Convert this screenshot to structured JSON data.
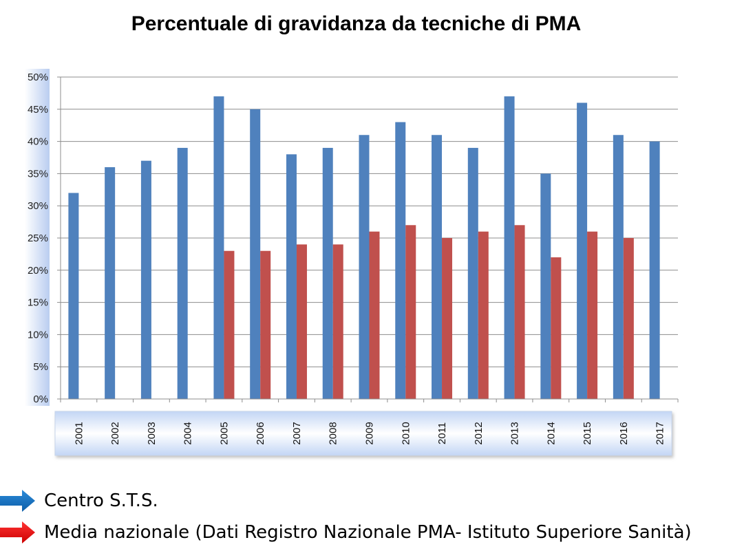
{
  "chart_data": {
    "type": "bar",
    "title": "Percentuale di gravidanza da tecniche di PMA",
    "categories": [
      "2001",
      "2002",
      "2003",
      "2004",
      "2005",
      "2006",
      "2007",
      "2008",
      "2009",
      "2010",
      "2011",
      "2012",
      "2013",
      "2014",
      "2015",
      "2016",
      "2017"
    ],
    "series": [
      {
        "name": "Centro S.T.S.",
        "color": "#4F81BD",
        "values": [
          32,
          36,
          37,
          39,
          47,
          45,
          38,
          39,
          41,
          43,
          41,
          39,
          47,
          35,
          46,
          41,
          40
        ]
      },
      {
        "name": "Media nazionale (Dati Registro Nazionale PMA- Istituto Superiore Sanità)",
        "color": "#C0504D",
        "values": [
          null,
          null,
          null,
          null,
          23,
          23,
          24,
          24,
          26,
          27,
          25,
          26,
          27,
          22,
          26,
          25,
          null
        ]
      }
    ],
    "ylim": [
      0,
      50
    ],
    "yticks": [
      0,
      5,
      10,
      15,
      20,
      25,
      30,
      35,
      40,
      45,
      50
    ],
    "ytick_labels": [
      "0%",
      "5%",
      "10%",
      "15%",
      "20%",
      "25%",
      "30%",
      "35%",
      "40%",
      "45%",
      "50%"
    ],
    "grid": true,
    "legend_position": "bottom-left",
    "legend_marker": "arrow-icon"
  }
}
